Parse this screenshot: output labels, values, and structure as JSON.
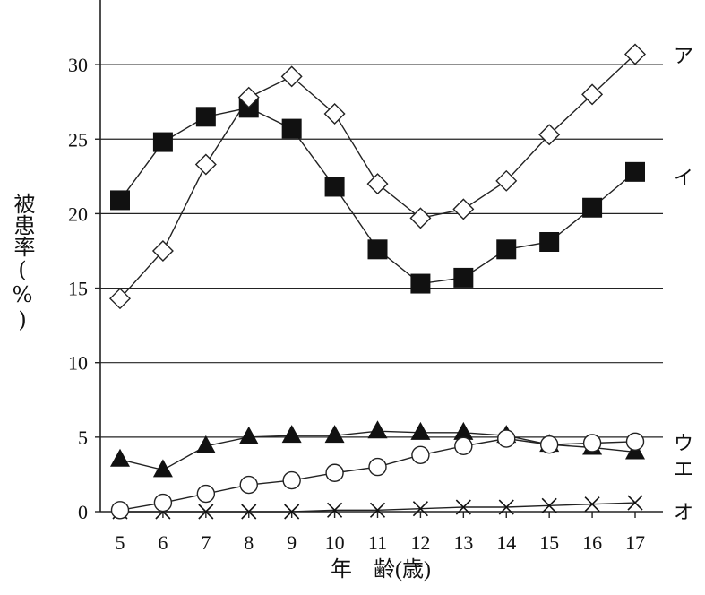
{
  "chart_data": {
    "type": "line",
    "title": "",
    "xlabel": "年　齢(歳)",
    "ylabel": "被患率(%)",
    "x": [
      5,
      6,
      7,
      8,
      9,
      10,
      11,
      12,
      13,
      14,
      15,
      16,
      17
    ],
    "xlim": [
      5,
      17
    ],
    "ylim": [
      0,
      35
    ],
    "yticks": [
      0,
      5,
      10,
      15,
      20,
      25,
      30
    ],
    "grid": "horizontal",
    "series": [
      {
        "name": "ア",
        "marker": "diamond-open",
        "values": [
          14.3,
          17.5,
          23.3,
          27.8,
          29.2,
          26.7,
          22.0,
          19.7,
          20.3,
          22.2,
          25.3,
          28.0,
          30.7
        ]
      },
      {
        "name": "イ",
        "marker": "square-filled",
        "values": [
          20.9,
          24.8,
          26.5,
          27.1,
          25.7,
          21.8,
          17.6,
          15.3,
          15.7,
          17.6,
          18.1,
          20.4,
          22.8
        ]
      },
      {
        "name": "ウ",
        "marker": "circle-open",
        "values": [
          0.1,
          0.6,
          1.2,
          1.8,
          2.1,
          2.6,
          3.0,
          3.8,
          4.4,
          4.9,
          4.5,
          4.6,
          4.7
        ]
      },
      {
        "name": "エ",
        "marker": "triangle-filled",
        "values": [
          3.5,
          2.8,
          4.4,
          5.0,
          5.1,
          5.1,
          5.4,
          5.3,
          5.3,
          5.1,
          4.5,
          4.3,
          4.0
        ]
      },
      {
        "name": "オ",
        "marker": "cross",
        "values": [
          0.0,
          0.0,
          0.0,
          0.0,
          0.0,
          0.1,
          0.1,
          0.2,
          0.3,
          0.3,
          0.4,
          0.5,
          0.6
        ]
      }
    ]
  }
}
